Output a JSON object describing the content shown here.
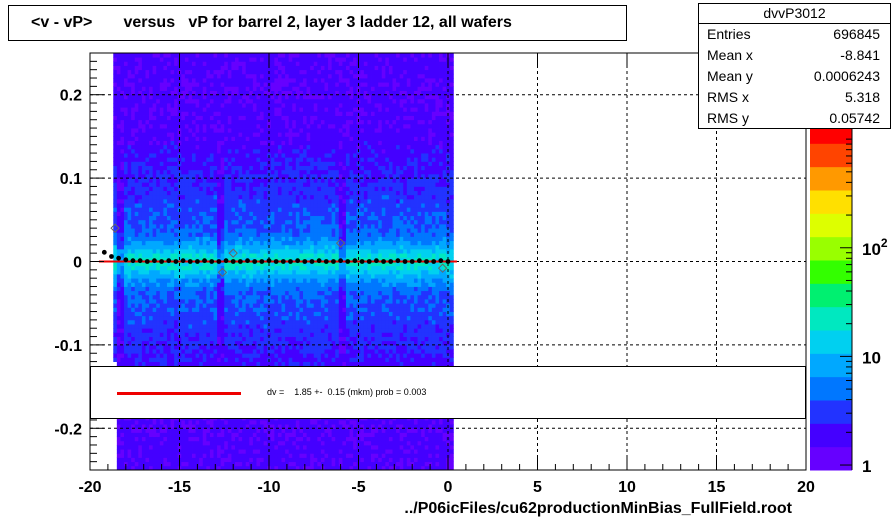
{
  "chart_data": {
    "type": "heatmap",
    "title": "<v - vP>       versus   vP for barrel 2, layer 3 ladder 12, all wafers",
    "xlabel": "../P06icFiles/cu62productionMinBias_FullField.root",
    "ylabel": "",
    "xlim": [
      -20,
      20
    ],
    "ylim": [
      -0.25,
      0.25
    ],
    "x_ticks": [
      "-20",
      "-15",
      "-10",
      "-5",
      "0",
      "5",
      "10",
      "15",
      "20"
    ],
    "x_tick_values": [
      -20,
      -15,
      -10,
      -5,
      0,
      5,
      10,
      15,
      20
    ],
    "y_ticks": [
      "0.2",
      "0.1",
      "0",
      "-0.1",
      "-0.2"
    ],
    "y_tick_values": [
      0.2,
      0.1,
      0,
      -0.1,
      -0.2
    ],
    "grid": true,
    "z_scale": "log",
    "z_ticks": [
      {
        "value": 1,
        "label": "1"
      },
      {
        "value": 10,
        "label": "10"
      },
      {
        "value": 100,
        "label": "10",
        "sup": "2"
      }
    ],
    "zlim": [
      0.9,
      1500
    ],
    "occupied_x_range": [
      -18.7,
      0.2
    ],
    "occupied_x_range_lower": [
      -18.5,
      0.2
    ],
    "gap_columns_x": [
      -18.4,
      -12.8,
      -6.0
    ],
    "band_center_y": 0.0,
    "profile_points": [
      {
        "x": -19.2,
        "y": 0.011
      },
      {
        "x": -18.8,
        "y": 0.006
      },
      {
        "x": -18.4,
        "y": 0.004
      },
      {
        "x": -18.0,
        "y": 0.002
      },
      {
        "x": -17.6,
        "y": 0.001
      },
      {
        "x": -17.2,
        "y": 0.001
      },
      {
        "x": -16.8,
        "y": 0.0
      },
      {
        "x": -16.4,
        "y": 0.001
      },
      {
        "x": -16.0,
        "y": 0.0
      },
      {
        "x": -15.6,
        "y": 0.001
      },
      {
        "x": -15.2,
        "y": 0.0
      },
      {
        "x": -14.8,
        "y": 0.001
      },
      {
        "x": -14.4,
        "y": 0.0
      },
      {
        "x": -14.0,
        "y": 0.0
      },
      {
        "x": -13.6,
        "y": 0.001
      },
      {
        "x": -13.2,
        "y": 0.0
      },
      {
        "x": -12.8,
        "y": 0.0
      },
      {
        "x": -12.4,
        "y": 0.001
      },
      {
        "x": -12.0,
        "y": 0.0
      },
      {
        "x": -11.6,
        "y": 0.0
      },
      {
        "x": -11.2,
        "y": 0.001
      },
      {
        "x": -10.8,
        "y": 0.0
      },
      {
        "x": -10.4,
        "y": 0.0
      },
      {
        "x": -10.0,
        "y": 0.001
      },
      {
        "x": -9.6,
        "y": 0.0
      },
      {
        "x": -9.2,
        "y": 0.0
      },
      {
        "x": -8.8,
        "y": 0.0
      },
      {
        "x": -8.4,
        "y": 0.001
      },
      {
        "x": -8.0,
        "y": 0.0
      },
      {
        "x": -7.6,
        "y": 0.0
      },
      {
        "x": -7.2,
        "y": 0.001
      },
      {
        "x": -6.8,
        "y": 0.0
      },
      {
        "x": -6.4,
        "y": 0.0
      },
      {
        "x": -6.0,
        "y": 0.001
      },
      {
        "x": -5.6,
        "y": 0.0
      },
      {
        "x": -5.2,
        "y": 0.001
      },
      {
        "x": -4.8,
        "y": 0.0
      },
      {
        "x": -4.4,
        "y": 0.0
      },
      {
        "x": -4.0,
        "y": 0.001
      },
      {
        "x": -3.6,
        "y": 0.0
      },
      {
        "x": -3.2,
        "y": 0.0
      },
      {
        "x": -2.8,
        "y": 0.001
      },
      {
        "x": -2.4,
        "y": 0.0
      },
      {
        "x": -2.0,
        "y": 0.0
      },
      {
        "x": -1.6,
        "y": 0.001
      },
      {
        "x": -1.2,
        "y": 0.0
      },
      {
        "x": -0.8,
        "y": 0.0
      },
      {
        "x": -0.4,
        "y": 0.001
      },
      {
        "x": 0.0,
        "y": 0.0
      }
    ],
    "open_markers": [
      {
        "x": -18.6,
        "y": 0.04
      },
      {
        "x": -12.6,
        "y": -0.013
      },
      {
        "x": -12.0,
        "y": 0.01
      },
      {
        "x": -6.0,
        "y": 0.022
      },
      {
        "x": -0.3,
        "y": -0.008
      }
    ],
    "fit": {
      "type": "line",
      "y": 0.0,
      "x_range": [
        -19.5,
        0.5
      ],
      "color": "#ee0000"
    },
    "colors": {
      "fit_line": "#ee0000",
      "grid": "#000000",
      "palette": [
        "#6600ff",
        "#4400ff",
        "#2233ff",
        "#0077ff",
        "#00a8ff",
        "#00d0f0",
        "#00e8c0",
        "#00f070",
        "#33ff00",
        "#99ff00",
        "#ddff00",
        "#ffe000",
        "#ff9900",
        "#ff4400",
        "#ff0000"
      ]
    }
  },
  "legend": {
    "text": "dv =    1.85 +-  0.15 (mkm) prob = 0.003"
  },
  "stats": {
    "title": "dvvP3012",
    "rows": [
      {
        "label": "Entries",
        "value": "696845"
      },
      {
        "label": "Mean x",
        "value": "-8.841"
      },
      {
        "label": "Mean y",
        "value": "0.0006243"
      },
      {
        "label": "RMS x",
        "value": "5.318"
      },
      {
        "label": "RMS y",
        "value": "0.05742"
      }
    ]
  }
}
